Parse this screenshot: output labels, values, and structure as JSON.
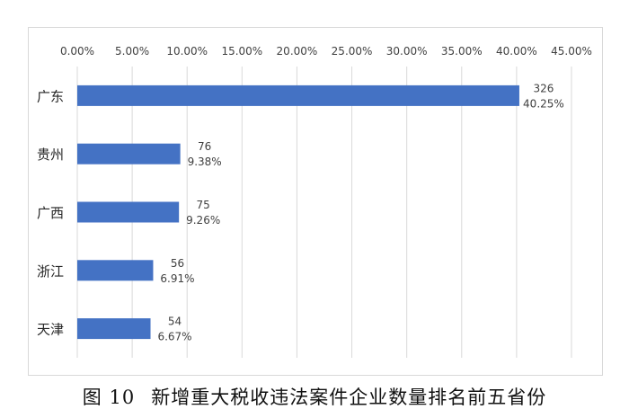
{
  "chart_data": {
    "type": "bar",
    "orientation": "horizontal",
    "categories": [
      "广东",
      "贵州",
      "广西",
      "浙江",
      "天津"
    ],
    "values": [
      40.25,
      9.38,
      9.26,
      6.91,
      6.67
    ],
    "counts": [
      326,
      76,
      75,
      56,
      54
    ],
    "value_labels": [
      "40.25%",
      "9.38%",
      "9.26%",
      "6.91%",
      "6.67%"
    ],
    "count_labels": [
      "326",
      "76",
      "75",
      "56",
      "54"
    ],
    "xlim": [
      0,
      45
    ],
    "x_ticks": [
      "0.00%",
      "5.00%",
      "10.00%",
      "15.00%",
      "20.00%",
      "25.00%",
      "30.00%",
      "35.00%",
      "40.00%",
      "45.00%"
    ],
    "x_axis_position": "top",
    "grid": true,
    "legend": "none",
    "bar_color": "#4472c4",
    "grid_color": "#d9d9d9"
  },
  "caption": {
    "figure_label": "图 10",
    "text": "新增重大税收违法案件企业数量排名前五省份"
  }
}
